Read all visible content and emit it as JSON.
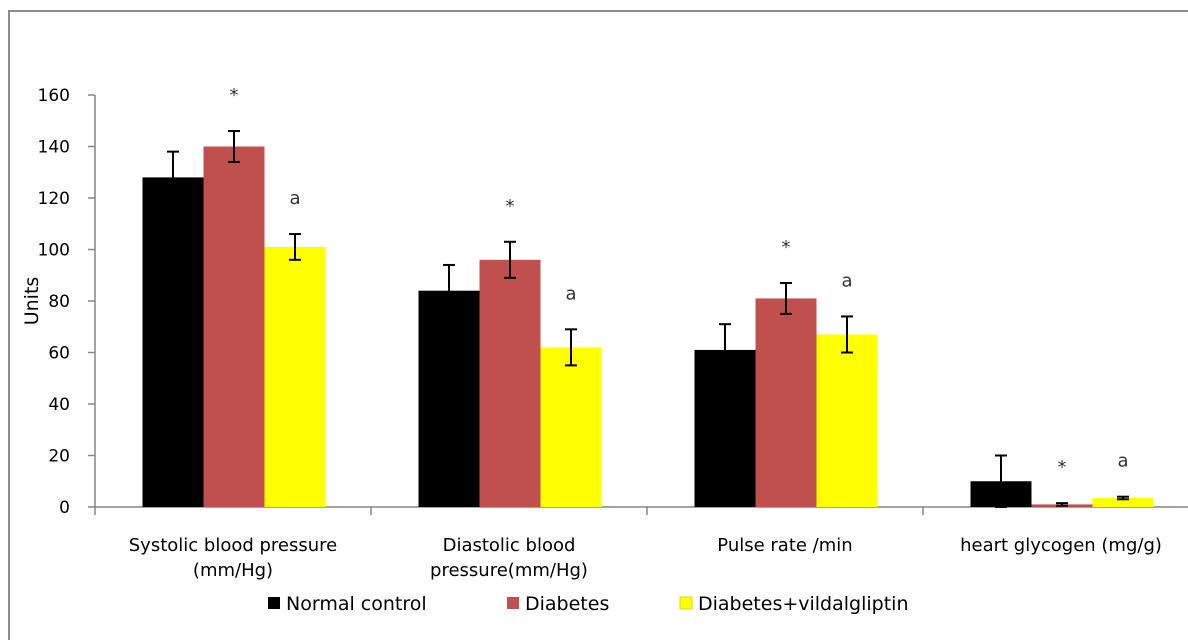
{
  "chart_data": {
    "type": "bar",
    "ylabel": "Units",
    "ylim": [
      0,
      160
    ],
    "yticks": [
      0,
      20,
      40,
      60,
      80,
      100,
      120,
      140,
      160
    ],
    "categories": [
      [
        "Systolic blood pressure",
        "(mm/Hg)"
      ],
      [
        "Diastolic blood",
        "pressure(mm/Hg)"
      ],
      [
        "Pulse rate /min"
      ],
      [
        "heart glycogen (mg/g)"
      ]
    ],
    "series": [
      {
        "name": "Normal control",
        "color": "#000000",
        "values": [
          128,
          84,
          61,
          10
        ],
        "errors": [
          10,
          10,
          10,
          10
        ],
        "annotations": [
          "",
          "",
          "",
          ""
        ]
      },
      {
        "name": "Diabetes",
        "color": "#c0504d",
        "values": [
          140,
          96,
          81,
          1
        ],
        "errors": [
          6,
          7,
          6,
          0.5
        ],
        "annotations": [
          "*",
          "*",
          "*",
          "*"
        ]
      },
      {
        "name": "Diabetes+vildalgliptin",
        "color": "#ffff00",
        "values": [
          101,
          62,
          67,
          3.5
        ],
        "errors": [
          5,
          7,
          7,
          0.5
        ],
        "annotations": [
          "a",
          "a",
          "a",
          "a"
        ]
      }
    ],
    "grid": false,
    "legend": "bottom"
  }
}
